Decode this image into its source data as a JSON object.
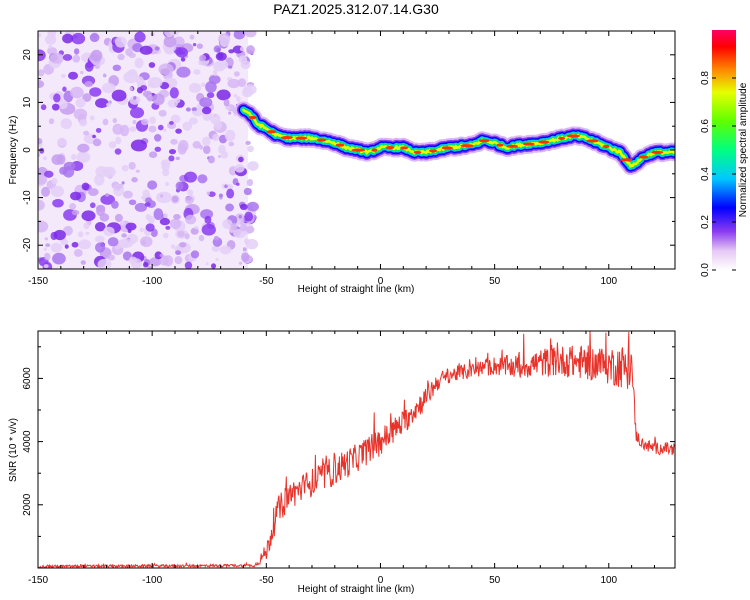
{
  "title": "PAZ1.2025.312.07.14.G30",
  "chart_data": [
    {
      "type": "heatmap",
      "title": "PAZ1.2025.312.07.14.G30",
      "xlabel": "Height of straight line (km)",
      "ylabel": "Frequency (Hz)",
      "xlim": [
        -150,
        129
      ],
      "ylim": [
        -25,
        25
      ],
      "xticks": [
        -150,
        -100,
        -50,
        0,
        50,
        100
      ],
      "yticks": [
        -20,
        -10,
        0,
        10,
        20
      ],
      "noise_region_x": [
        -150,
        -58
      ],
      "ridge": {
        "description_points_x": [
          -60,
          -57,
          -54,
          -50,
          -45,
          -40,
          -30,
          -25,
          -20,
          -15,
          -10,
          -5,
          0,
          10,
          15,
          20,
          30,
          40,
          45,
          50,
          55,
          60,
          70,
          80,
          85,
          90,
          95,
          100,
          105,
          110,
          115,
          120,
          129
        ],
        "description_points_y": [
          8.5,
          7.5,
          5.5,
          4.5,
          3.0,
          2.5,
          2.5,
          2.0,
          1.5,
          0.5,
          0.0,
          -0.5,
          0.5,
          0.5,
          -0.5,
          -0.5,
          0.5,
          1.0,
          2.0,
          1.5,
          0.5,
          1.0,
          1.5,
          2.5,
          3.0,
          2.5,
          1.5,
          0.5,
          -0.5,
          -3.5,
          -1.5,
          -0.5,
          -0.5
        ]
      },
      "colorbar": {
        "label": "Normalized spectral amplitude",
        "range": [
          0,
          1
        ],
        "ticks": [
          "0.0",
          "0.2",
          "0.4",
          "0.6",
          "0.8"
        ]
      }
    },
    {
      "type": "line",
      "xlabel": "Height of straight line (km)",
      "ylabel": "SNR (10 * v/v)",
      "xlim": [
        -150,
        129
      ],
      "ylim": [
        0,
        7500
      ],
      "xticks": [
        -150,
        -100,
        -50,
        0,
        50,
        100
      ],
      "yticks": [
        2000,
        4000,
        6000
      ],
      "series": [
        {
          "name": "SNR",
          "color": "#e8332b",
          "envelope_x": [
            -150,
            -55,
            -50,
            -45,
            -40,
            -30,
            -20,
            -10,
            0,
            10,
            20,
            25,
            30,
            40,
            50,
            60,
            70,
            80,
            90,
            100,
            105,
            110,
            112,
            115,
            120,
            129
          ],
          "envelope_y": [
            50,
            80,
            500,
            1800,
            2300,
            2700,
            3100,
            3500,
            4000,
            4600,
            5400,
            5900,
            6100,
            6250,
            6400,
            6350,
            6500,
            6550,
            6500,
            6400,
            6400,
            6300,
            4200,
            3900,
            3800,
            3750
          ],
          "noise_amplitude": [
            40,
            40,
            300,
            450,
            450,
            450,
            500,
            450,
            450,
            400,
            350,
            300,
            250,
            250,
            300,
            400,
            450,
            500,
            550,
            600,
            700,
            700,
            200,
            200,
            200,
            200
          ]
        }
      ]
    }
  ]
}
